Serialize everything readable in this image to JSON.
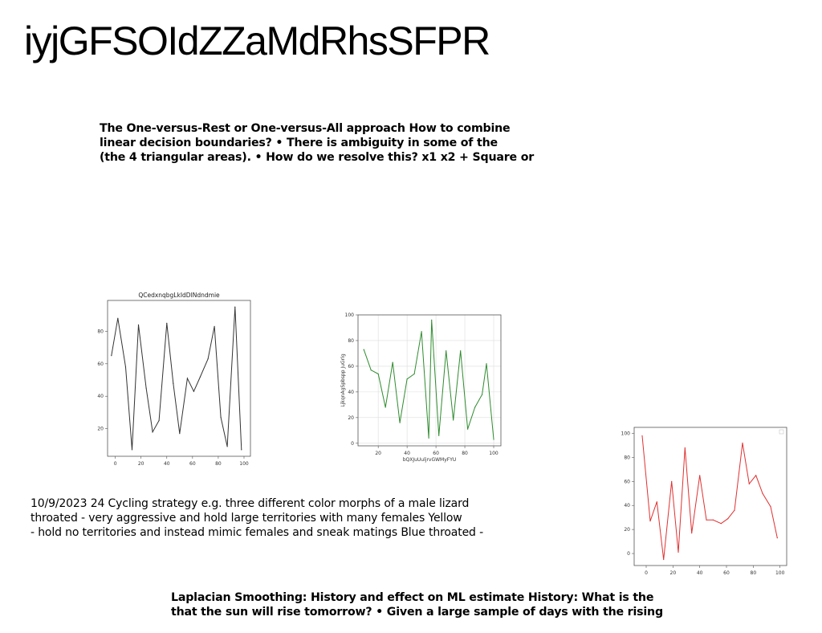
{
  "title": "iyjGFSOIdZZaMdRhsSFPR",
  "block_top": [
    "The One-versus-Rest or One-versus-All approach How to combine",
    "linear decision boundaries? • There is ambiguity in some of the",
    "(the 4 triangular areas). • How do we resolve this? x1 x2 + Square or"
  ],
  "block_mid": [
    "10/9/2023 24 Cycling strategy e.g. three different color morphs of a male lizard",
    "throated - very aggressive and hold large territories with many females Yellow",
    "- hold no territories and instead mimic females and sneak matings Blue throated -"
  ],
  "block_bottom": [
    "Laplacian Smoothing: History and effect on ML estimate History: What is the",
    "that the sun will rise tomorrow? • Given a large sample of days with the rising"
  ],
  "chart_data": [
    {
      "type": "line",
      "title": "QCedxnqbgLkIdDINdndmie",
      "xlabel": "",
      "ylabel": "",
      "color": "#333333",
      "grid": false,
      "xlim": [
        -6,
        105
      ],
      "ylim": [
        3,
        99
      ],
      "xticks": [
        0,
        20,
        40,
        60,
        80,
        100
      ],
      "yticks": [
        20,
        40,
        60,
        80
      ],
      "x": [
        -3,
        2,
        8,
        13,
        18,
        24,
        29,
        34,
        40,
        45,
        50,
        56,
        61,
        66,
        72,
        77,
        82,
        87,
        93,
        98
      ],
      "y": [
        65,
        88,
        58,
        7,
        84,
        45,
        18,
        25,
        85,
        48,
        17,
        51,
        43,
        52,
        63,
        83,
        27,
        9,
        95,
        7
      ]
    },
    {
      "type": "line",
      "title": "",
      "xlabel": "bQXJuUuljrvGWMyFYU",
      "ylabel": "LjkqnAgSpbspp JuGrlg",
      "color": "#2e8b2e",
      "grid": true,
      "xlim": [
        6,
        105
      ],
      "ylim": [
        -2,
        100
      ],
      "xticks": [
        20,
        40,
        60,
        80,
        100
      ],
      "yticks": [
        0,
        20,
        40,
        60,
        80,
        100
      ],
      "x": [
        10,
        15,
        20,
        25,
        30,
        35,
        40,
        45,
        50,
        55,
        57,
        62,
        67,
        72,
        77,
        82,
        87,
        92,
        95,
        100
      ],
      "y": [
        73,
        57,
        54,
        28,
        63,
        16,
        50,
        54,
        87,
        4,
        96,
        6,
        72,
        18,
        72,
        11,
        28,
        38,
        62,
        3
      ]
    },
    {
      "type": "line",
      "title": "",
      "xlabel": "",
      "ylabel": "",
      "color": "#e03030",
      "grid": false,
      "legend": "top-right",
      "xlim": [
        -9,
        105
      ],
      "ylim": [
        -10,
        105
      ],
      "xticks": [
        0,
        20,
        40,
        60,
        80,
        100
      ],
      "yticks": [
        0,
        20,
        40,
        60,
        80,
        100
      ],
      "x": [
        -3,
        3,
        8,
        13,
        19,
        24,
        29,
        34,
        40,
        45,
        50,
        56,
        61,
        66,
        72,
        77,
        82,
        87,
        93,
        98
      ],
      "y": [
        98,
        27,
        43,
        -5,
        60,
        1,
        88,
        17,
        65,
        28,
        28,
        25,
        29,
        36,
        92,
        58,
        65,
        50,
        39,
        13
      ]
    }
  ]
}
